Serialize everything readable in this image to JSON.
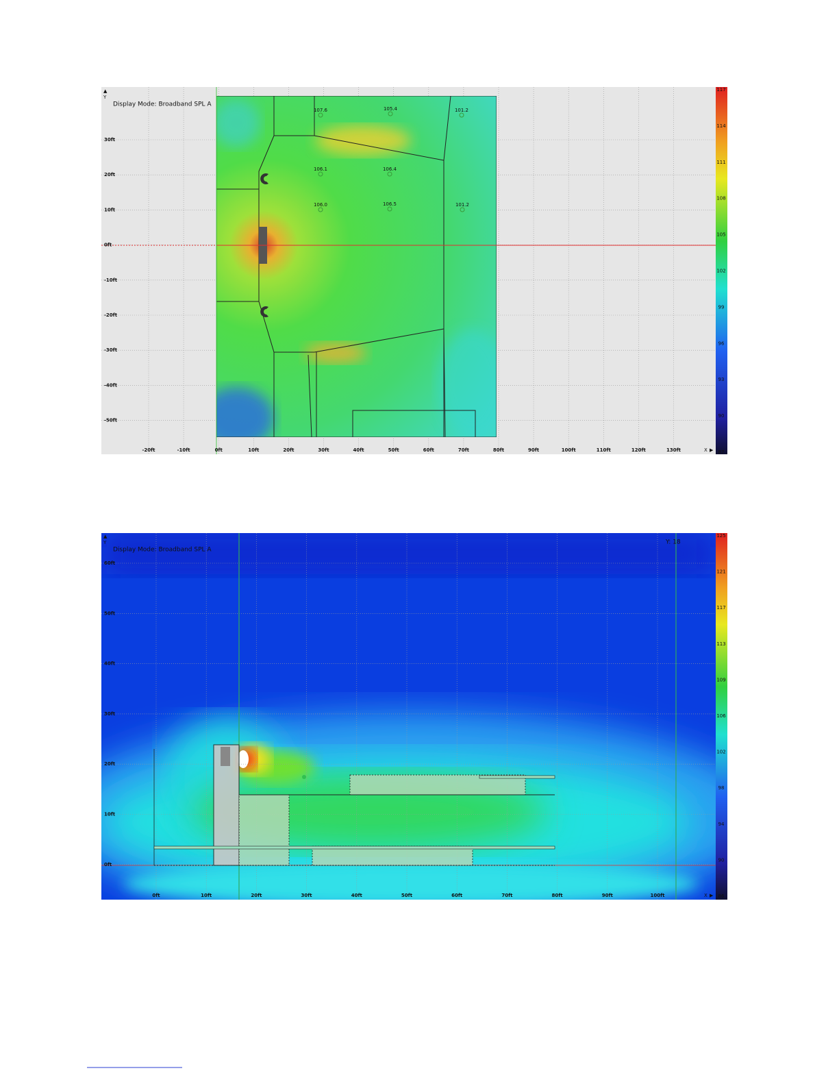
{
  "plots": [
    {
      "display_mode": "Display Mode: Broadband SPL A",
      "y_axis_label": "Y",
      "x_axis_label": "X",
      "x_ticks": [
        "-20ft",
        "-10ft",
        "0ft",
        "10ft",
        "20ft",
        "30ft",
        "40ft",
        "50ft",
        "60ft",
        "70ft",
        "80ft",
        "90ft",
        "100ft",
        "110ft",
        "120ft",
        "130ft"
      ],
      "y_ticks": [
        "30ft",
        "20ft",
        "10ft",
        "0ft",
        "-10ft",
        "-20ft",
        "-30ft",
        "-40ft",
        "-50ft"
      ],
      "colorbar_labels": [
        "117",
        "114",
        "111",
        "108",
        "105",
        "102",
        "99",
        "96",
        "93",
        "90",
        "87"
      ],
      "measurements": [
        "107.6",
        "105.4",
        "101.2",
        "106.1",
        "106.4",
        "106.0",
        "106.5",
        "101.2"
      ]
    },
    {
      "display_mode": "Display Mode: Broadband SPL A",
      "y_axis_label": "Y",
      "x_axis_label": "X",
      "view_label": "Y: 18",
      "x_ticks": [
        "0ft",
        "10ft",
        "20ft",
        "30ft",
        "40ft",
        "50ft",
        "60ft",
        "70ft",
        "80ft",
        "90ft",
        "100ft"
      ],
      "y_ticks": [
        "60ft",
        "50ft",
        "40ft",
        "30ft",
        "20ft",
        "10ft",
        "0ft"
      ],
      "colorbar_labels": [
        "125",
        "121",
        "117",
        "113",
        "109",
        "106",
        "102",
        "98",
        "94",
        "90",
        "86"
      ]
    }
  ]
}
